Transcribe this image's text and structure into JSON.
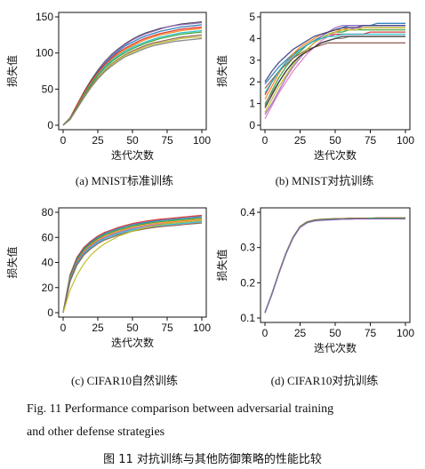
{
  "chart_data": [
    {
      "id": "a",
      "type": "line",
      "ylabel": "损失值",
      "xlabel": "迭代次数",
      "caption": "(a)  MNIST标准训练",
      "xlim": [
        0,
        100
      ],
      "ylim": [
        0,
        150
      ],
      "xticks": [
        "0",
        "25",
        "50",
        "75",
        "100"
      ],
      "yticks": [
        "0",
        "50",
        "100",
        "150"
      ],
      "x": [
        0,
        5,
        10,
        15,
        20,
        25,
        30,
        35,
        40,
        45,
        50,
        55,
        60,
        65,
        70,
        75,
        80,
        85,
        90,
        95,
        100
      ],
      "series": [
        {
          "color": "#2f2f2f",
          "values": [
            0,
            10,
            28,
            46,
            62,
            76,
            88,
            98,
            106,
            113,
            119,
            124,
            128,
            131,
            134,
            136,
            138,
            140,
            141,
            142,
            143
          ]
        },
        {
          "color": "#9467bd",
          "values": [
            0,
            10,
            27,
            45,
            61,
            75,
            87,
            97,
            105,
            112,
            118,
            123,
            127,
            130,
            133,
            136,
            138,
            139,
            140,
            141,
            142
          ]
        },
        {
          "color": "#1f77b4",
          "values": [
            0,
            9,
            26,
            44,
            60,
            74,
            85,
            95,
            103,
            110,
            115,
            120,
            124,
            127,
            130,
            132,
            134,
            136,
            137,
            138,
            139
          ]
        },
        {
          "color": "#d62728",
          "values": [
            0,
            10,
            28,
            45,
            60,
            73,
            84,
            93,
            101,
            107,
            112,
            117,
            121,
            124,
            127,
            129,
            131,
            133,
            134,
            135,
            136
          ]
        },
        {
          "color": "#ff7f0e",
          "values": [
            0,
            9,
            26,
            43,
            58,
            71,
            82,
            91,
            99,
            105,
            110,
            115,
            119,
            122,
            125,
            127,
            129,
            131,
            132,
            133,
            134
          ]
        },
        {
          "color": "#17becf",
          "values": [
            0,
            9,
            25,
            42,
            57,
            70,
            81,
            90,
            97,
            103,
            108,
            112,
            116,
            119,
            122,
            124,
            126,
            128,
            129,
            130,
            131
          ]
        },
        {
          "color": "#2ca02c",
          "values": [
            0,
            9,
            25,
            41,
            56,
            69,
            79,
            88,
            95,
            101,
            106,
            110,
            114,
            117,
            120,
            122,
            124,
            126,
            127,
            128,
            129
          ]
        },
        {
          "color": "#8c564b",
          "values": [
            0,
            8,
            24,
            40,
            54,
            66,
            76,
            85,
            92,
            98,
            103,
            107,
            111,
            114,
            116,
            118,
            120,
            122,
            123,
            124,
            125
          ]
        },
        {
          "color": "#bcbd22",
          "values": [
            0,
            8,
            23,
            39,
            53,
            65,
            75,
            84,
            91,
            97,
            101,
            105,
            109,
            112,
            114,
            116,
            118,
            120,
            121,
            122,
            122
          ]
        },
        {
          "color": "#7f7f7f",
          "values": [
            0,
            8,
            23,
            38,
            52,
            64,
            74,
            82,
            89,
            95,
            99,
            103,
            107,
            110,
            112,
            114,
            116,
            117,
            118,
            119,
            120
          ]
        }
      ]
    },
    {
      "id": "b",
      "type": "line",
      "ylabel": "损失值",
      "xlabel": "迭代次数",
      "caption": "(b)  MNIST对抗训练",
      "xlim": [
        0,
        100
      ],
      "ylim": [
        0,
        5
      ],
      "xticks": [
        "0",
        "25",
        "50",
        "75",
        "100"
      ],
      "yticks": [
        "0",
        "1",
        "2",
        "3",
        "4",
        "5"
      ],
      "x": [
        0,
        5,
        10,
        15,
        20,
        25,
        30,
        35,
        40,
        45,
        50,
        55,
        60,
        65,
        70,
        75,
        80,
        85,
        90,
        95,
        100
      ],
      "series": [
        {
          "color": "#1f77b4",
          "values": [
            1.9,
            2.3,
            2.7,
            3.0,
            3.3,
            3.5,
            3.7,
            3.9,
            4.1,
            4.3,
            4.4,
            4.5,
            4.6,
            4.6,
            4.6,
            4.6,
            4.7,
            4.7,
            4.7,
            4.7,
            4.7
          ]
        },
        {
          "color": "#ff7f0e",
          "values": [
            1.2,
            1.8,
            2.4,
            2.9,
            3.3,
            3.6,
            3.8,
            4.0,
            4.2,
            4.3,
            4.4,
            4.4,
            4.5,
            4.5,
            4.5,
            4.5,
            4.5,
            4.5,
            4.5,
            4.5,
            4.5
          ]
        },
        {
          "color": "#2ca02c",
          "values": [
            0.9,
            1.6,
            2.2,
            2.7,
            3.1,
            3.4,
            3.7,
            3.9,
            4.0,
            4.2,
            4.3,
            4.3,
            4.4,
            4.4,
            4.4,
            4.4,
            4.4,
            4.4,
            4.4,
            4.4,
            4.4
          ]
        },
        {
          "color": "#d62728",
          "values": [
            1.4,
            2.0,
            2.5,
            2.9,
            3.2,
            3.5,
            3.7,
            3.9,
            4.0,
            4.1,
            4.2,
            4.2,
            4.2,
            4.2,
            4.2,
            4.3,
            4.3,
            4.3,
            4.3,
            4.3,
            4.3
          ]
        },
        {
          "color": "#9467bd",
          "values": [
            0.5,
            1.0,
            1.6,
            2.2,
            2.7,
            3.1,
            3.5,
            3.8,
            4.1,
            4.3,
            4.5,
            4.6,
            4.6,
            4.6,
            4.6,
            4.6,
            4.6,
            4.6,
            4.6,
            4.6,
            4.6
          ]
        },
        {
          "color": "#8c564b",
          "values": [
            1.7,
            2.1,
            2.5,
            2.8,
            3.1,
            3.3,
            3.5,
            3.6,
            3.7,
            3.8,
            3.8,
            3.8,
            3.8,
            3.8,
            3.8,
            3.8,
            3.8,
            3.8,
            3.8,
            3.8,
            3.8
          ]
        },
        {
          "color": "#e377c2",
          "values": [
            0.3,
            0.9,
            1.5,
            2.0,
            2.5,
            2.9,
            3.3,
            3.6,
            3.9,
            4.1,
            4.3,
            4.4,
            4.4,
            4.5,
            4.5,
            4.5,
            4.5,
            4.5,
            4.5,
            4.5,
            4.5
          ]
        },
        {
          "color": "#7f7f7f",
          "values": [
            1.0,
            1.5,
            2.0,
            2.5,
            2.9,
            3.2,
            3.4,
            3.6,
            3.8,
            3.9,
            4.0,
            4.0,
            4.1,
            4.1,
            4.1,
            4.1,
            4.1,
            4.1,
            4.1,
            4.1,
            4.1
          ]
        },
        {
          "color": "#bcbd22",
          "values": [
            0.6,
            1.2,
            1.8,
            2.3,
            2.8,
            3.2,
            3.5,
            3.8,
            4.0,
            4.2,
            4.3,
            4.4,
            4.4,
            4.4,
            4.5,
            4.5,
            4.5,
            4.5,
            4.5,
            4.5,
            4.5
          ]
        },
        {
          "color": "#17becf",
          "values": [
            1.5,
            2.0,
            2.5,
            2.9,
            3.2,
            3.5,
            3.7,
            3.9,
            4.0,
            4.1,
            4.1,
            4.2,
            4.2,
            4.2,
            4.2,
            4.2,
            4.2,
            4.2,
            4.2,
            4.2,
            4.2
          ]
        },
        {
          "color": "#393b79",
          "values": [
            2.0,
            2.5,
            2.9,
            3.2,
            3.5,
            3.7,
            3.9,
            4.1,
            4.2,
            4.3,
            4.4,
            4.5,
            4.5,
            4.5,
            4.6,
            4.6,
            4.6,
            4.6,
            4.6,
            4.6,
            4.6
          ]
        },
        {
          "color": "#2f2f2f",
          "values": [
            0.8,
            1.4,
            2.0,
            2.5,
            2.9,
            3.2,
            3.4,
            3.6,
            3.8,
            3.9,
            4.0,
            4.1,
            4.1,
            4.1,
            4.1,
            4.1,
            4.1,
            4.1,
            4.1,
            4.1,
            4.1
          ]
        }
      ]
    },
    {
      "id": "c",
      "type": "line",
      "ylabel": "损失值",
      "xlabel": "迭代次数",
      "caption": "(c)  CIFAR10自然训练",
      "xlim": [
        0,
        100
      ],
      "ylim": [
        0,
        80
      ],
      "xticks": [
        "0",
        "25",
        "50",
        "75",
        "100"
      ],
      "yticks": [
        "0",
        "20",
        "40",
        "60",
        "80"
      ],
      "x": [
        0,
        5,
        10,
        15,
        20,
        25,
        30,
        35,
        40,
        45,
        50,
        55,
        60,
        65,
        70,
        75,
        80,
        85,
        90,
        95,
        100
      ],
      "series": [
        {
          "color": "#d62728",
          "values": [
            0,
            30,
            44,
            52,
            57,
            61,
            64,
            66,
            68,
            69.5,
            71,
            72,
            73,
            73.8,
            74.5,
            75,
            75.5,
            76,
            76.5,
            77,
            77.5
          ]
        },
        {
          "color": "#1f77b4",
          "values": [
            0,
            29,
            43,
            51,
            56,
            60,
            63,
            65,
            67,
            68.5,
            70,
            71,
            72,
            72.8,
            73.5,
            74,
            74.5,
            75,
            75.5,
            76,
            76.5
          ]
        },
        {
          "color": "#2ca02c",
          "values": [
            0,
            28,
            42,
            50,
            55,
            59,
            62,
            64,
            66,
            67.5,
            69,
            70,
            71,
            71.8,
            72.5,
            73,
            73.5,
            74,
            74.5,
            75,
            75.5
          ]
        },
        {
          "color": "#ff7f0e",
          "values": [
            0,
            27,
            41,
            49,
            54,
            58,
            61,
            63,
            65,
            66.5,
            68,
            69,
            70,
            70.8,
            71.5,
            72,
            72.5,
            73,
            73.5,
            74,
            74.5
          ]
        },
        {
          "color": "#9467bd",
          "values": [
            0,
            26,
            40,
            48,
            53,
            57,
            60,
            62,
            64,
            65.5,
            67,
            68,
            69,
            69.8,
            70.5,
            71,
            71.5,
            72,
            72.5,
            73,
            73.5
          ]
        },
        {
          "color": "#17becf",
          "values": [
            0,
            26,
            39,
            47,
            52,
            56,
            59,
            61,
            63,
            64.5,
            66,
            67,
            68,
            68.8,
            69.5,
            70,
            70.5,
            71,
            71.5,
            72,
            72.5
          ]
        },
        {
          "color": "#8c564b",
          "values": [
            0,
            25,
            38,
            46,
            51,
            55,
            58,
            60,
            62,
            63.5,
            65,
            66,
            67,
            67.8,
            68.5,
            69,
            69.5,
            70,
            70.5,
            71,
            71.5
          ]
        },
        {
          "color": "#bcbd22",
          "values": [
            0,
            18,
            30,
            39,
            46,
            51,
            55,
            58,
            61,
            63,
            65,
            66.5,
            68,
            69,
            70,
            71,
            71.5,
            72,
            72.5,
            73,
            73.5
          ]
        }
      ]
    },
    {
      "id": "d",
      "type": "line",
      "ylabel": "损失值",
      "xlabel": "迭代次数",
      "caption": "(d)  CIFAR10对抗训练",
      "xlim": [
        0,
        100
      ],
      "ylim": [
        0.1,
        0.4
      ],
      "xticks": [
        "0",
        "25",
        "50",
        "75",
        "100"
      ],
      "yticks": [
        "0.1",
        "0.2",
        "0.3",
        "0.4"
      ],
      "x": [
        0,
        5,
        10,
        15,
        20,
        25,
        30,
        35,
        40,
        45,
        50,
        55,
        60,
        65,
        70,
        75,
        80,
        85,
        90,
        95,
        100
      ],
      "series": [
        {
          "color": "#d62728",
          "values": [
            0.115,
            0.17,
            0.23,
            0.285,
            0.33,
            0.36,
            0.373,
            0.378,
            0.38,
            0.381,
            0.382,
            0.382,
            0.383,
            0.383,
            0.383,
            0.383,
            0.384,
            0.384,
            0.384,
            0.384,
            0.384
          ]
        },
        {
          "color": "#1f77b4",
          "values": [
            0.115,
            0.168,
            0.228,
            0.283,
            0.328,
            0.358,
            0.371,
            0.376,
            0.378,
            0.379,
            0.38,
            0.381,
            0.381,
            0.382,
            0.382,
            0.382,
            0.382,
            0.382,
            0.382,
            0.382,
            0.382
          ]
        },
        {
          "color": "#2ca02c",
          "values": [
            0.116,
            0.169,
            0.229,
            0.284,
            0.329,
            0.359,
            0.372,
            0.377,
            0.379,
            0.38,
            0.381,
            0.381,
            0.382,
            0.382,
            0.382,
            0.383,
            0.383,
            0.383,
            0.383,
            0.383,
            0.383
          ]
        },
        {
          "color": "#9467bd",
          "values": [
            0.114,
            0.167,
            0.227,
            0.282,
            0.327,
            0.357,
            0.37,
            0.375,
            0.377,
            0.378,
            0.379,
            0.38,
            0.38,
            0.381,
            0.381,
            0.381,
            0.381,
            0.381,
            0.381,
            0.381,
            0.381
          ]
        }
      ]
    }
  ],
  "figure_caption": {
    "en_line1": "Fig. 11   Performance comparison between adversarial training",
    "en_line2": "and other defense strategies",
    "zh": "图 11   对抗训练与其他防御策略的性能比较"
  }
}
